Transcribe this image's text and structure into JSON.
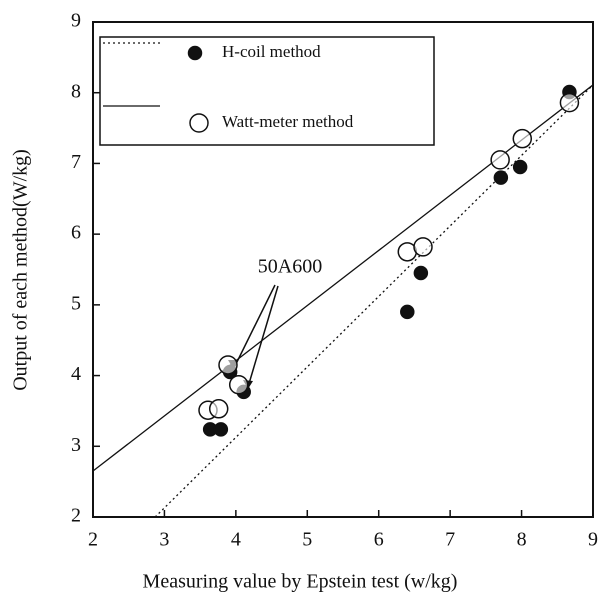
{
  "chart_data": {
    "type": "scatter",
    "x_label": "Measuring value by Epstein test (w/kg)",
    "y_label": "Output of each method(W/kg)",
    "annotation": "50A600",
    "xlim": [
      2,
      9
    ],
    "ylim": [
      2,
      9
    ],
    "xticks": [
      2,
      3,
      4,
      5,
      6,
      7,
      8,
      9
    ],
    "yticks": [
      2,
      3,
      4,
      5,
      6,
      7,
      8,
      9
    ],
    "series": [
      {
        "name": "H-coil method",
        "marker": "filled",
        "line": "dotted",
        "color": "#111111",
        "x": [
          3.92,
          4.11,
          3.64,
          3.79,
          6.4,
          6.59,
          7.71,
          7.98,
          8.67
        ],
        "values": [
          4.05,
          3.77,
          3.24,
          3.24,
          4.9,
          5.45,
          6.8,
          6.95,
          8.01
        ],
        "fit": {
          "x": [
            2.87,
            9
          ],
          "values": [
            2,
            8.11
          ]
        }
      },
      {
        "name": "Watt-meter method",
        "marker": "open",
        "line": "solid",
        "color": "#111111",
        "x": [
          3.89,
          4.04,
          3.61,
          3.76,
          6.4,
          6.62,
          7.7,
          8.01,
          8.67
        ],
        "values": [
          4.15,
          3.87,
          3.51,
          3.53,
          5.75,
          5.82,
          7.05,
          7.35,
          7.86
        ],
        "fit": {
          "x": [
            2,
            9
          ],
          "values": [
            2.65,
            8.11
          ]
        }
      }
    ]
  }
}
